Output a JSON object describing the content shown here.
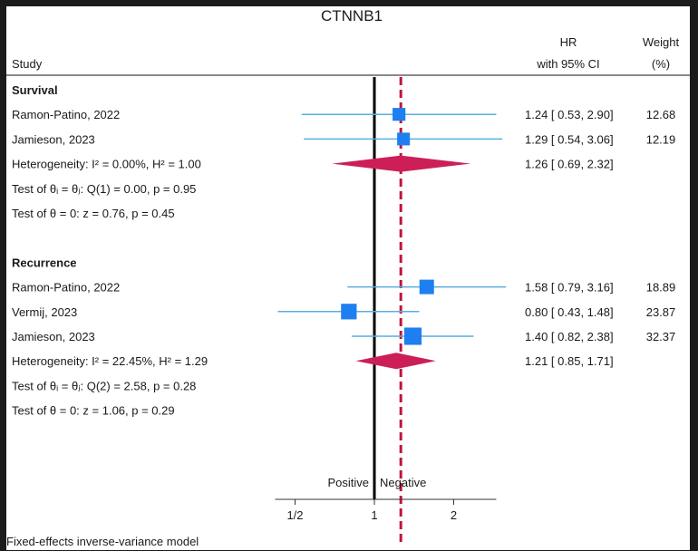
{
  "chart_data": {
    "type": "forest",
    "title": "CTNNB1",
    "columns": {
      "study": "Study",
      "hr_line1": "HR",
      "hr_line2": "with 95% CI",
      "weight_line1": "Weight",
      "weight_line2": "(%)"
    },
    "scale": "log",
    "null_value": 1,
    "overall_effect": 1.26,
    "xlim": [
      0.42,
      2.9
    ],
    "xticks": [
      {
        "value": 0.5,
        "label": "1/2"
      },
      {
        "value": 1,
        "label": "1"
      },
      {
        "value": 2,
        "label": "2"
      }
    ],
    "direction_labels": {
      "left": "Positive",
      "right": "Negative"
    },
    "groups": [
      {
        "name": "Survival",
        "studies": [
          {
            "label": "Ramon-Patino, 2022",
            "hr": 1.24,
            "lo": 0.53,
            "hi": 2.9,
            "ci_text": "1.24 [ 0.53,  2.90]",
            "weight": 12.68,
            "weight_text": "12.68"
          },
          {
            "label": "Jamieson, 2023",
            "hr": 1.29,
            "lo": 0.54,
            "hi": 3.06,
            "ci_text": "1.29 [ 0.54,  3.06]",
            "weight": 12.19,
            "weight_text": "12.19"
          }
        ],
        "pooled": {
          "label": "Heterogeneity: I² = 0.00%, H² = 1.00",
          "hr": 1.26,
          "lo": 0.69,
          "hi": 2.32,
          "ci_text": "1.26 [ 0.69,  2.32]"
        },
        "tests": [
          "Test of θᵢ = θⱼ: Q(1) = 0.00, p = 0.95",
          "Test of θ = 0: z = 0.76, p = 0.45"
        ]
      },
      {
        "name": "Recurrence",
        "studies": [
          {
            "label": "Ramon-Patino, 2022",
            "hr": 1.58,
            "lo": 0.79,
            "hi": 3.16,
            "ci_text": "1.58 [ 0.79,  3.16]",
            "weight": 18.89,
            "weight_text": "18.89"
          },
          {
            "label": "Vermij, 2023",
            "hr": 0.8,
            "lo": 0.43,
            "hi": 1.48,
            "ci_text": "0.80 [ 0.43,  1.48]",
            "weight": 23.87,
            "weight_text": "23.87"
          },
          {
            "label": "Jamieson, 2023",
            "hr": 1.4,
            "lo": 0.82,
            "hi": 2.38,
            "ci_text": "1.40 [ 0.82,  2.38]",
            "weight": 32.37,
            "weight_text": "32.37"
          }
        ],
        "pooled": {
          "label": "Heterogeneity: I² = 22.45%, H² = 1.29",
          "hr": 1.21,
          "lo": 0.85,
          "hi": 1.71,
          "ci_text": "1.21 [ 0.85,  1.71]"
        },
        "tests": [
          "Test of θᵢ = θⱼ: Q(2) = 2.58, p = 0.28",
          "Test of θ = 0: z = 1.06, p = 0.29"
        ]
      }
    ],
    "footnote": "Fixed-effects inverse-variance model",
    "colors": {
      "ci_line": "#5aaee0",
      "square": "#1e7ff0",
      "diamond": "#cc1f57",
      "overall_line": "#c0143c",
      "null_line": "#000000",
      "rule": "#888888"
    }
  }
}
